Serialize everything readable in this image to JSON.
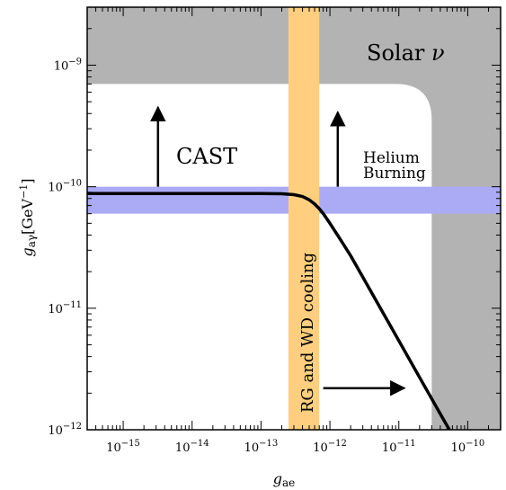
{
  "chart_data": {
    "type": "line",
    "xlabel": "g",
    "xlabel_sub": "ae",
    "ylabel": "g",
    "ylabel_sub": "aγ",
    "ylabel_unit": "[GeV",
    "ylabel_unit_exp": "−1",
    "ylabel_unit_close": "]",
    "xscale": "log",
    "yscale": "log",
    "xlim": [
      3e-16,
      3e-10
    ],
    "ylim": [
      1e-12,
      3e-09
    ],
    "x_ticks": [
      {
        "value": 1e-15,
        "base": "10",
        "exp": "−15"
      },
      {
        "value": 1e-14,
        "base": "10",
        "exp": "−14"
      },
      {
        "value": 1e-13,
        "base": "10",
        "exp": "−13"
      },
      {
        "value": 1e-12,
        "base": "10",
        "exp": "−12"
      },
      {
        "value": 1e-11,
        "base": "10",
        "exp": "−11"
      },
      {
        "value": 1e-10,
        "base": "10",
        "exp": "−10"
      }
    ],
    "y_ticks": [
      {
        "value": 1e-09,
        "base": "10",
        "exp": "−9"
      },
      {
        "value": 1e-10,
        "base": "10",
        "exp": "−10"
      },
      {
        "value": 1e-11,
        "base": "10",
        "exp": "−11"
      },
      {
        "value": 1e-12,
        "base": "10",
        "exp": "−12"
      }
    ],
    "series": [
      {
        "x": [
          3e-16,
          1e-15,
          1e-14,
          1e-13,
          2e-13,
          3e-13,
          4e-13,
          5e-13,
          6e-13,
          7e-13,
          8e-13,
          1e-12,
          1.5e-12,
          2e-12,
          3e-12,
          5e-12,
          1e-11,
          2e-11,
          4e-11,
          8e-11
        ],
        "y": [
          8.8e-11,
          8.8e-11,
          8.8e-11,
          8.8e-11,
          8.75e-11,
          8.6e-11,
          8.3e-11,
          7.8e-11,
          7.2e-11,
          6.6e-11,
          6e-11,
          5e-11,
          3.5e-11,
          2.7e-11,
          1.8e-11,
          1.08e-11,
          5.4e-12,
          2.7e-12,
          1.35e-12,
          6.8e-13
        ],
        "color": "#000000"
      }
    ],
    "regions": {
      "solar": {
        "label": "Solar",
        "label_symbol": "ν",
        "y_min": 7e-10,
        "x_min": 3e-11,
        "color": "#b3b3b3"
      },
      "rg_wd": {
        "label": "RG and WD cooling",
        "x_range": [
          2.5e-13,
          7e-13
        ],
        "color": "#ffcf7f"
      },
      "helium": {
        "y_range": [
          6e-11,
          1e-10
        ],
        "color": "#aaaaf5"
      }
    },
    "annotations": {
      "cast": {
        "label": "CAST",
        "x": 3.2e-15,
        "y_from": 1e-10,
        "y_to": 4.5e-10
      },
      "helium": {
        "label_line1": "Helium",
        "label_line2": "Burning",
        "x": 1.3e-12,
        "y_from": 1e-10,
        "y_to": 4.1e-10
      },
      "rg_arrow": {
        "x_from": 8e-13,
        "x_to": 1.2e-11,
        "y": 2.2e-12
      }
    },
    "colors": {
      "solar": "#b3b3b3",
      "rg_wd": "#ffcf7f",
      "helium": "#aaaaf5",
      "line": "#000000"
    }
  }
}
